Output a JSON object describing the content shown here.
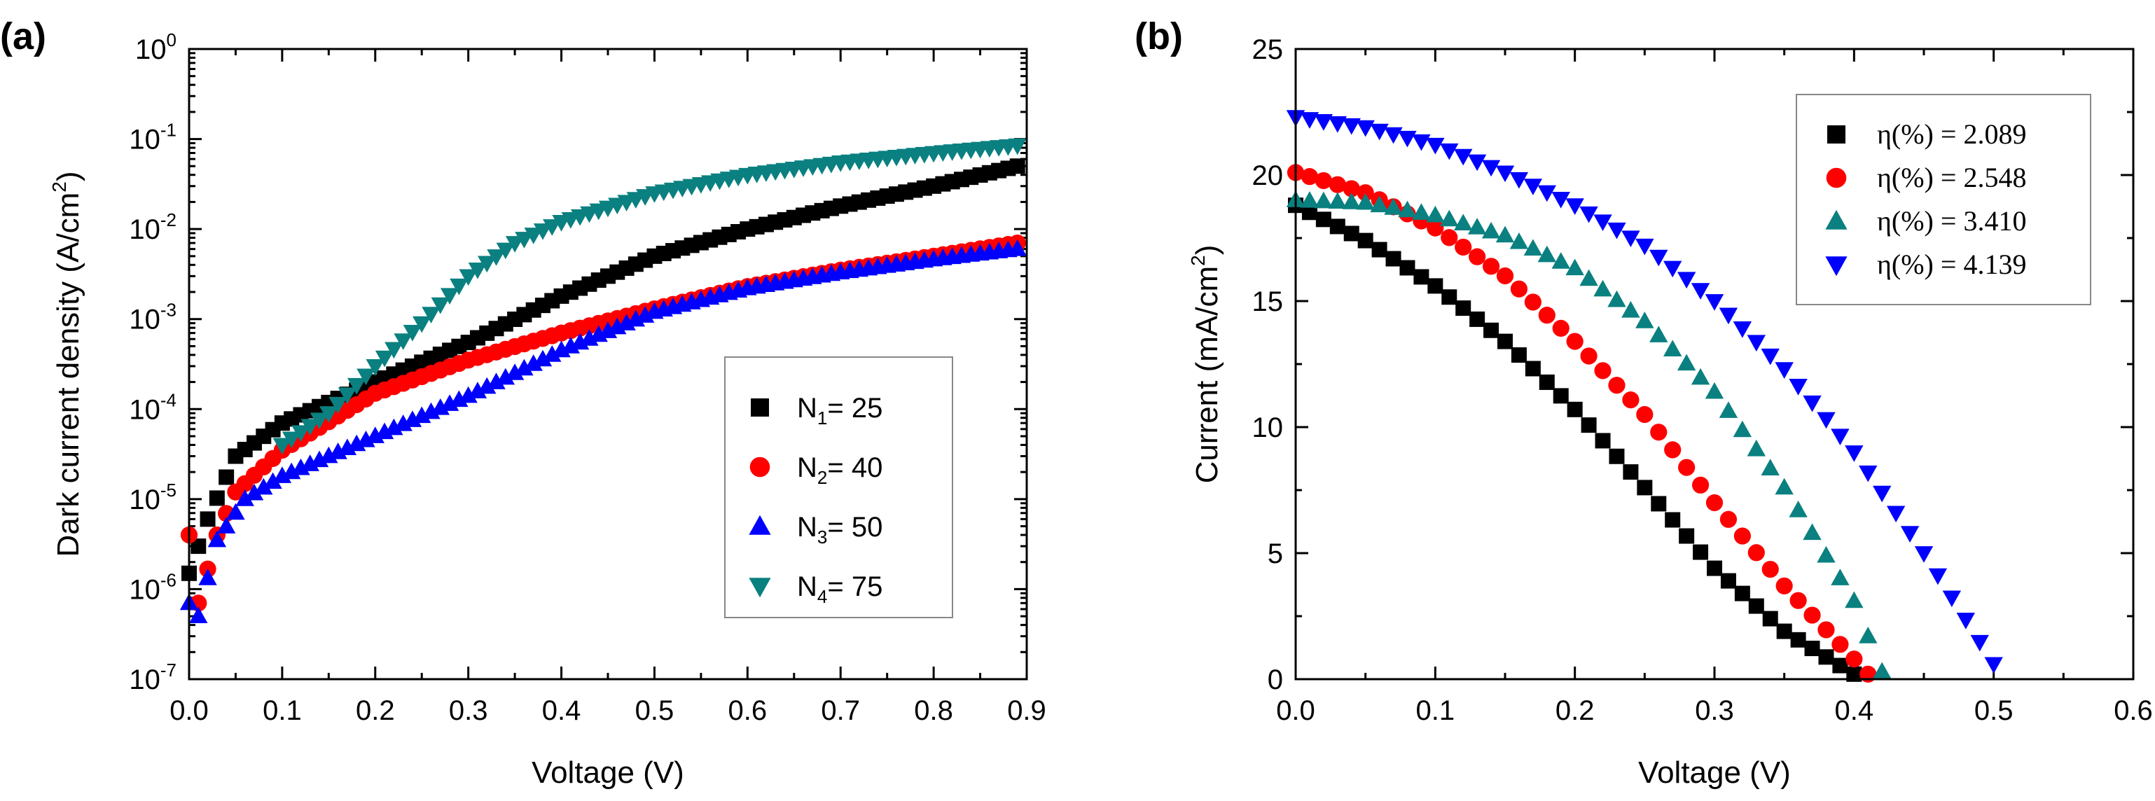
{
  "chart_data": [
    {
      "panel_label": "(a)",
      "type": "scatter",
      "yscale": "log",
      "xlabel": "Voltage (V)",
      "ylabel": "Dark current density (A/cm",
      "ylabel_sup": "2",
      "ylabel_tail": ")",
      "xlim": [
        0.0,
        0.9
      ],
      "ylim": [
        1e-07,
        1
      ],
      "xticks": [
        0.0,
        0.1,
        0.2,
        0.3,
        0.4,
        0.5,
        0.6,
        0.7,
        0.8,
        0.9
      ],
      "xtick_labels": [
        "0.0",
        "0.1",
        "0.2",
        "0.3",
        "0.4",
        "0.5",
        "0.6",
        "0.7",
        "0.8",
        "0.9"
      ],
      "yticks": [
        {
          "base": "10",
          "exp": "-7",
          "value": 1e-07
        },
        {
          "base": "10",
          "exp": "-6",
          "value": 1e-06
        },
        {
          "base": "10",
          "exp": "-5",
          "value": 1e-05
        },
        {
          "base": "10",
          "exp": "-4",
          "value": 0.0001
        },
        {
          "base": "10",
          "exp": "-3",
          "value": 0.001
        },
        {
          "base": "10",
          "exp": "-2",
          "value": 0.01
        },
        {
          "base": "10",
          "exp": "-1",
          "value": 0.1
        },
        {
          "base": "10",
          "exp": "0",
          "value": 1
        }
      ],
      "legend_position": "lower-right",
      "x_range": [
        0.0,
        0.89
      ],
      "n_points": 90,
      "series": [
        {
          "name": "N1 = 25",
          "label_main": "N",
          "label_sub": "1",
          "label_tail": "= 25",
          "marker": "square",
          "color": "#000000",
          "x": [
            0.0,
            0.02,
            0.05,
            0.1,
            0.2,
            0.3,
            0.4,
            0.5,
            0.6,
            0.7,
            0.8,
            0.89
          ],
          "values": [
            1.5e-06,
            6e-06,
            3e-05,
            7e-05,
            0.0002,
            0.00055,
            0.0018,
            0.005,
            0.01,
            0.018,
            0.03,
            0.05
          ]
        },
        {
          "name": "N2 = 40",
          "label_main": "N",
          "label_sub": "2",
          "label_tail": "= 40",
          "marker": "circle",
          "color": "#ff0000",
          "x": [
            0.0,
            0.01,
            0.03,
            0.05,
            0.1,
            0.2,
            0.3,
            0.4,
            0.5,
            0.6,
            0.7,
            0.8,
            0.89
          ],
          "values": [
            4e-06,
            7e-07,
            4e-06,
            1.2e-05,
            3.5e-05,
            0.00015,
            0.00035,
            0.0007,
            0.0013,
            0.0023,
            0.0035,
            0.005,
            0.007
          ]
        },
        {
          "name": "N3 = 50",
          "label_main": "N",
          "label_sub": "3",
          "label_tail": "= 50",
          "marker": "triangle-up",
          "color": "#0000ff",
          "x": [
            0.0,
            0.01,
            0.03,
            0.06,
            0.1,
            0.2,
            0.3,
            0.4,
            0.5,
            0.6,
            0.7,
            0.8,
            0.89
          ],
          "values": [
            7e-07,
            5e-07,
            3.5e-06,
            1e-05,
            1.8e-05,
            5e-05,
            0.00014,
            0.00045,
            0.0012,
            0.0022,
            0.0033,
            0.0046,
            0.006
          ]
        },
        {
          "name": "N4 = 75",
          "label_main": "N",
          "label_sub": "4",
          "label_tail": "= 75",
          "marker": "triangle-down",
          "color": "#0a8080",
          "x": [
            0.1,
            0.15,
            0.2,
            0.25,
            0.3,
            0.35,
            0.4,
            0.5,
            0.6,
            0.7,
            0.8,
            0.89
          ],
          "values": [
            4e-05,
            9e-05,
            0.0003,
            0.0009,
            0.003,
            0.007,
            0.012,
            0.025,
            0.04,
            0.055,
            0.07,
            0.085
          ]
        }
      ]
    },
    {
      "panel_label": "(b)",
      "type": "scatter",
      "yscale": "linear",
      "xlabel": "Voltage (V)",
      "ylabel": "Current (mA/cm",
      "ylabel_sup": "2",
      "ylabel_tail": ")",
      "xlim": [
        0.0,
        0.6
      ],
      "ylim": [
        0,
        25
      ],
      "xticks": [
        0.0,
        0.1,
        0.2,
        0.3,
        0.4,
        0.5,
        0.6
      ],
      "xtick_labels": [
        "0.0",
        "0.1",
        "0.2",
        "0.3",
        "0.4",
        "0.5",
        "0.6"
      ],
      "yticks": [
        0,
        5,
        10,
        15,
        20,
        25
      ],
      "ytick_labels": [
        "0",
        "5",
        "10",
        "15",
        "20",
        "25"
      ],
      "legend_position": "top-right",
      "series": [
        {
          "name": "η(%) = 2.089",
          "label": "η(%) = 2.089",
          "marker": "square",
          "color": "#000000",
          "voc": 0.41,
          "step": 0.01,
          "x": [
            0.0,
            0.05,
            0.1,
            0.15,
            0.2,
            0.25,
            0.3,
            0.35,
            0.4
          ],
          "values": [
            18.8,
            17.4,
            15.6,
            13.4,
            10.7,
            7.6,
            4.4,
            1.9,
            0.2
          ]
        },
        {
          "name": "η(%) = 2.548",
          "label": "η(%) = 2.548",
          "marker": "circle",
          "color": "#ff0000",
          "voc": 0.415,
          "step": 0.01,
          "x": [
            0.0,
            0.05,
            0.1,
            0.15,
            0.2,
            0.25,
            0.3,
            0.35,
            0.4,
            0.41
          ],
          "values": [
            20.1,
            19.3,
            17.9,
            16.0,
            13.4,
            10.5,
            7.0,
            3.7,
            0.8,
            0.2
          ]
        },
        {
          "name": "η(%) = 3.410",
          "label": "η(%) = 3.410",
          "marker": "triangle-up",
          "color": "#0a8080",
          "voc": 0.425,
          "step": 0.01,
          "x": [
            0.0,
            0.05,
            0.1,
            0.15,
            0.2,
            0.25,
            0.3,
            0.35,
            0.4,
            0.42
          ],
          "values": [
            19.0,
            18.9,
            18.4,
            17.6,
            16.3,
            14.2,
            11.4,
            7.6,
            3.1,
            0.3
          ]
        },
        {
          "name": "η(%) = 4.139",
          "label": "η(%) = 4.139",
          "marker": "triangle-down",
          "color": "#0000ff",
          "voc": 0.505,
          "step": 0.01,
          "x": [
            0.0,
            0.05,
            0.1,
            0.15,
            0.2,
            0.25,
            0.3,
            0.35,
            0.4,
            0.45,
            0.5
          ],
          "values": [
            22.3,
            21.9,
            21.2,
            20.1,
            18.8,
            17.2,
            15.0,
            12.3,
            9.0,
            5.0,
            0.6
          ]
        }
      ]
    }
  ]
}
